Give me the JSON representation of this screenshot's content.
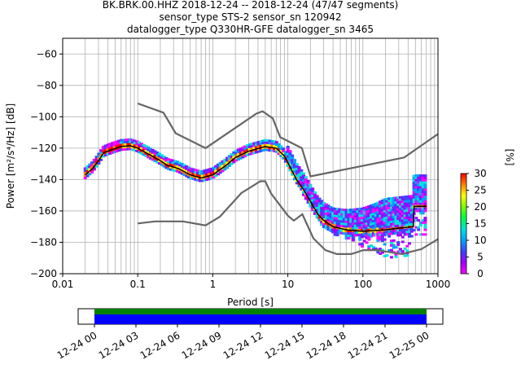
{
  "chart_data": {
    "type": "heatmap",
    "title_lines": [
      "BK.BRK.00.HHZ   2018-12-24 -- 2018-12-24  (47/47 segments)",
      "sensor_type STS-2 sensor_sn 120942",
      "datalogger_type Q330HR-GFE datalogger_sn 3465"
    ],
    "xlabel": "Period [s]",
    "ylabel": "Power [m²/s⁴/Hz] [dB]",
    "xscale": "log",
    "xlim": [
      0.01,
      1000
    ],
    "ylim": [
      -200,
      -50
    ],
    "grid": true,
    "x_ticks": [
      {
        "value": 0.01,
        "label": "0.01"
      },
      {
        "value": 0.1,
        "label": "0.1"
      },
      {
        "value": 1,
        "label": "1"
      },
      {
        "value": 10,
        "label": "10"
      },
      {
        "value": 100,
        "label": "100"
      },
      {
        "value": 1000,
        "label": "1000"
      }
    ],
    "y_ticks": [
      {
        "value": -60,
        "label": "−60"
      },
      {
        "value": -80,
        "label": "−80"
      },
      {
        "value": -100,
        "label": "−100"
      },
      {
        "value": -120,
        "label": "−120"
      },
      {
        "value": -140,
        "label": "−140"
      },
      {
        "value": -160,
        "label": "−160"
      },
      {
        "value": -180,
        "label": "−180"
      },
      {
        "value": -200,
        "label": "−200"
      }
    ],
    "series": [
      {
        "role": "high_noise_model",
        "color": "#666666",
        "points": [
          [
            0.1,
            -91.5
          ],
          [
            0.22,
            -97.4
          ],
          [
            0.32,
            -110.5
          ],
          [
            0.8,
            -120
          ],
          [
            3.8,
            -98
          ],
          [
            4.6,
            -96.5
          ],
          [
            6.3,
            -101
          ],
          [
            7.9,
            -113
          ],
          [
            15.4,
            -120
          ],
          [
            20,
            -138
          ],
          [
            354,
            -126
          ],
          [
            1000,
            -111
          ]
        ]
      },
      {
        "role": "low_noise_model",
        "color": "#666666",
        "points": [
          [
            0.1,
            -168
          ],
          [
            0.17,
            -166.7
          ],
          [
            0.4,
            -166.7
          ],
          [
            0.8,
            -169.2
          ],
          [
            1.24,
            -163.7
          ],
          [
            2.4,
            -148.6
          ],
          [
            4.3,
            -141.1
          ],
          [
            5.0,
            -141.1
          ],
          [
            6.0,
            -149
          ],
          [
            10,
            -163
          ],
          [
            12,
            -166.2
          ],
          [
            15.6,
            -162.1
          ],
          [
            21.9,
            -177.5
          ],
          [
            31.6,
            -185
          ],
          [
            45,
            -187.5
          ],
          [
            70,
            -187.5
          ],
          [
            101,
            -185
          ],
          [
            154,
            -185
          ],
          [
            328,
            -187.5
          ],
          [
            600,
            -184.4
          ],
          [
            1000,
            -178
          ]
        ]
      },
      {
        "role": "mode",
        "color": "#000000",
        "points": [
          [
            0.02,
            -137
          ],
          [
            0.025,
            -133
          ],
          [
            0.03,
            -128
          ],
          [
            0.035,
            -123
          ],
          [
            0.045,
            -121
          ],
          [
            0.06,
            -119
          ],
          [
            0.08,
            -118.5
          ],
          [
            0.1,
            -120
          ],
          [
            0.13,
            -123
          ],
          [
            0.2,
            -128
          ],
          [
            0.25,
            -131
          ],
          [
            0.35,
            -133
          ],
          [
            0.5,
            -137
          ],
          [
            0.7,
            -139
          ],
          [
            1,
            -137
          ],
          [
            1.5,
            -131
          ],
          [
            2,
            -126
          ],
          [
            3,
            -122
          ],
          [
            5,
            -119
          ],
          [
            7,
            -120
          ],
          [
            9,
            -125
          ],
          [
            11,
            -133
          ],
          [
            13,
            -140
          ],
          [
            16,
            -146
          ],
          [
            20,
            -154
          ],
          [
            25,
            -162
          ],
          [
            30,
            -166
          ],
          [
            40,
            -170
          ],
          [
            60,
            -172
          ],
          [
            100,
            -173
          ],
          [
            200,
            -172
          ],
          [
            300,
            -171
          ],
          [
            470,
            -170
          ],
          [
            480,
            -157
          ],
          [
            700,
            -157
          ]
        ]
      }
    ],
    "colorbar": {
      "label": "[%]",
      "range": [
        0,
        30
      ],
      "ticks": [
        "0",
        "5",
        "10",
        "15",
        "20",
        "25",
        "30"
      ]
    },
    "time_axis": {
      "labels": [
        "12-24 00",
        "12-24 03",
        "12-24 06",
        "12-24 09",
        "12-24 12",
        "12-24 15",
        "12-24 18",
        "12-24 21",
        "12-25 00"
      ],
      "coverage_colors": [
        "#008000",
        "#0000ff"
      ]
    }
  }
}
